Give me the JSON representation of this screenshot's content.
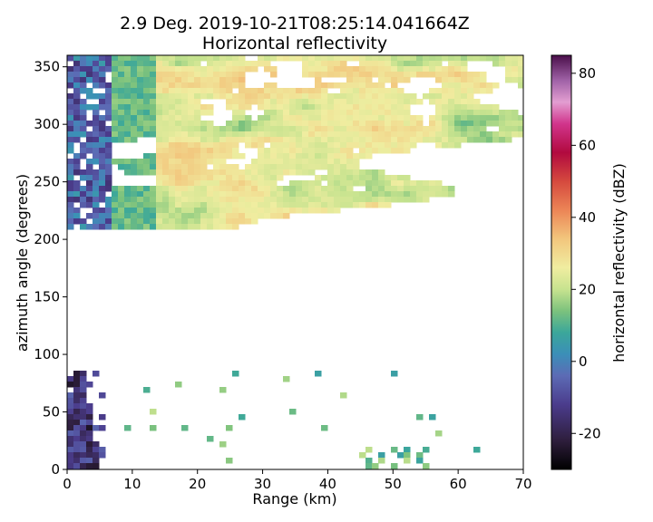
{
  "chart_data": {
    "type": "heatmap",
    "title": "2.9 Deg. 2019-10-21T08:25:14.041664Z",
    "subtitle": "Horizontal reflectivity",
    "xlabel": "Range (km)",
    "ylabel": "azimuth angle (degrees)",
    "xlim": [
      0,
      70
    ],
    "ylim": [
      0,
      360
    ],
    "xticks": [
      0,
      10,
      20,
      30,
      40,
      50,
      60,
      70
    ],
    "yticks": [
      0,
      50,
      100,
      150,
      200,
      250,
      300,
      350
    ],
    "colorbar": {
      "label": "horizontal reflectivity (dBZ)",
      "range": [
        -30,
        85
      ],
      "ticks": [
        -20,
        0,
        20,
        40,
        60,
        80
      ],
      "colormap": "pyart_HomeyerRainbow-like",
      "stops": [
        {
          "v": -30,
          "c": "#000000"
        },
        {
          "v": -22,
          "c": "#2e1e3c"
        },
        {
          "v": -12,
          "c": "#4b3c8c"
        },
        {
          "v": -4,
          "c": "#5c6bb5"
        },
        {
          "v": 2,
          "c": "#3b8fb8"
        },
        {
          "v": 8,
          "c": "#3ba79a"
        },
        {
          "v": 14,
          "c": "#7cc27d"
        },
        {
          "v": 20,
          "c": "#c7e38f"
        },
        {
          "v": 26,
          "c": "#f0eda0"
        },
        {
          "v": 34,
          "c": "#f2c67d"
        },
        {
          "v": 42,
          "c": "#ec8556"
        },
        {
          "v": 50,
          "c": "#d5493e"
        },
        {
          "v": 58,
          "c": "#b10a3f"
        },
        {
          "v": 66,
          "c": "#d1358c"
        },
        {
          "v": 72,
          "c": "#e39ed1"
        },
        {
          "v": 78,
          "c": "#a062a7"
        },
        {
          "v": 85,
          "c": "#4a0f4a"
        }
      ]
    },
    "regions": [
      {
        "name": "north-sector-echo",
        "az_range": [
          210,
          358
        ],
        "range_km": [
          0,
          72
        ],
        "dbz_typical": [
          10,
          35
        ],
        "peak_dbz": 35
      },
      {
        "name": "near-radar-clutter-north",
        "az_range": [
          210,
          358
        ],
        "range_km": [
          0,
          7
        ],
        "dbz_typical": [
          -15,
          5
        ]
      },
      {
        "name": "near-radar-clutter-south",
        "az_range": [
          0,
          86
        ],
        "range_km": [
          0,
          6
        ],
        "dbz_typical": [
          -25,
          -5
        ]
      },
      {
        "name": "sparse-south-echoes",
        "az_range": [
          0,
          86
        ],
        "range_km": [
          6,
          65
        ],
        "dbz_typical": [
          5,
          20
        ]
      },
      {
        "name": "empty-sector",
        "az_range": [
          86,
          210
        ],
        "range_km": [
          0,
          70
        ],
        "dbz_typical": null
      }
    ]
  }
}
